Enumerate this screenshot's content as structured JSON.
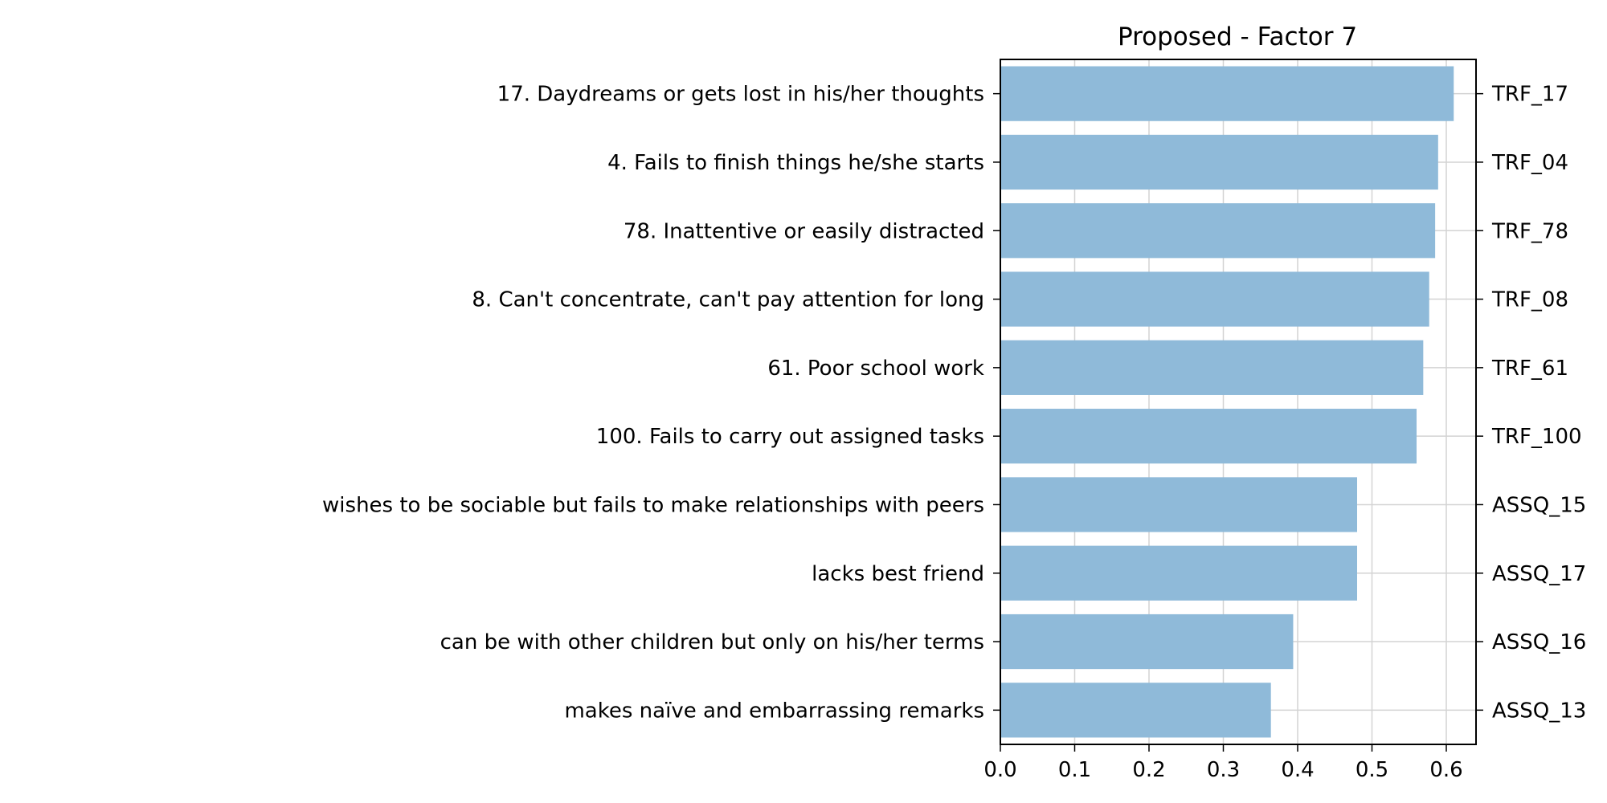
{
  "chart_data": {
    "type": "bar",
    "orientation": "horizontal",
    "title": "Proposed - Factor 7",
    "xlabel": "",
    "ylabel": "",
    "xlim": [
      0,
      0.64
    ],
    "x_ticks": [
      "0.0",
      "0.1",
      "0.2",
      "0.3",
      "0.4",
      "0.5",
      "0.6"
    ],
    "grid": true,
    "bar_color": "#8fbad9",
    "grid_color": "#d3d3d3",
    "categories": [
      "17. Daydreams or gets lost in his/her thoughts",
      "4. Fails to finish things he/she starts",
      "78. Inattentive or easily distracted",
      "8. Can't concentrate, can't pay attention for long",
      "61. Poor school work",
      "100. Fails to carry out assigned tasks",
      "wishes to be sociable but fails to make relationships with peers",
      "lacks best friend",
      "can be with other children but only on his/her terms",
      "makes naïve and embarrassing remarks"
    ],
    "codes": [
      "TRF_17",
      "TRF_04",
      "TRF_78",
      "TRF_08",
      "TRF_61",
      "TRF_100",
      "ASSQ_15",
      "ASSQ_17",
      "ASSQ_16",
      "ASSQ_13"
    ],
    "values": [
      0.61,
      0.589,
      0.585,
      0.577,
      0.569,
      0.56,
      0.48,
      0.48,
      0.394,
      0.364
    ]
  }
}
